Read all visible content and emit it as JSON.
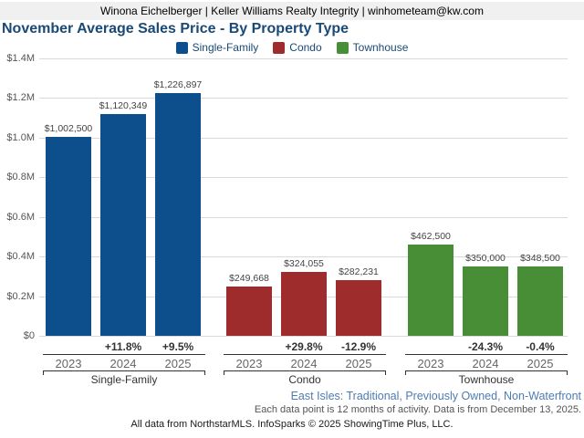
{
  "header": {
    "contact_line": "Winona Eichelberger | Keller Williams Realty Integrity | winhometeam@kw.com"
  },
  "title": "November Average Sales Price - By Property Type",
  "legend": [
    {
      "label": "Single-Family",
      "color": "#0d4f8c"
    },
    {
      "label": "Condo",
      "color": "#9e2c2c"
    },
    {
      "label": "Townhouse",
      "color": "#478e37"
    }
  ],
  "chart_data": {
    "type": "bar",
    "title": "November Average Sales Price - By Property Type",
    "xlabel": "",
    "ylabel": "",
    "categories": [
      "2023",
      "2024",
      "2025"
    ],
    "series": [
      {
        "name": "Single-Family",
        "color": "#0d4f8c",
        "values": [
          1002500,
          1120349,
          1226897
        ],
        "value_labels": [
          "$1,002,500",
          "$1,120,349",
          "$1,226,897"
        ],
        "pct_change_labels": [
          null,
          "+11.8%",
          "+9.5%"
        ]
      },
      {
        "name": "Condo",
        "color": "#9e2c2c",
        "values": [
          249668,
          324055,
          282231
        ],
        "value_labels": [
          "$249,668",
          "$324,055",
          "$282,231"
        ],
        "pct_change_labels": [
          null,
          "+29.8%",
          "-12.9%"
        ]
      },
      {
        "name": "Townhouse",
        "color": "#478e37",
        "values": [
          462500,
          350000,
          348500
        ],
        "value_labels": [
          "$462,500",
          "$350,000",
          "$348,500"
        ],
        "pct_change_labels": [
          null,
          "-24.3%",
          "-0.4%"
        ]
      }
    ],
    "ylim": [
      0,
      1400000
    ],
    "ytick_interval": 200000,
    "ytick_labels": [
      "$0",
      "$0.2M",
      "$0.4M",
      "$0.6M",
      "$0.8M",
      "$1.0M",
      "$1.2M",
      "$1.4M"
    ],
    "grid": true,
    "legend_position": "top center"
  },
  "footer": {
    "segment_line": "East Isles: Traditional, Previously Owned, Non-Waterfront",
    "note_line": "Each data point is 12 months of activity. Data is from December 13, 2025.",
    "credit_line": "All data from NorthstarMLS. InfoSparks © 2025 ShowingTime Plus, LLC."
  }
}
